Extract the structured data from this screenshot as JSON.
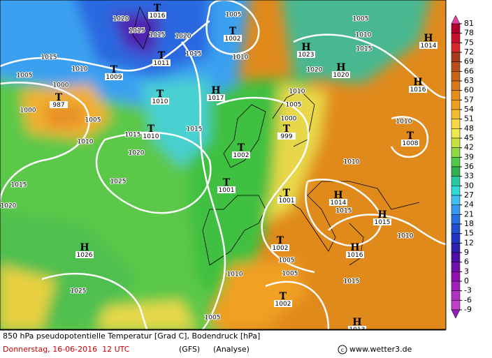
{
  "colorbar": {
    "ticks": [
      81,
      78,
      75,
      72,
      69,
      66,
      63,
      60,
      57,
      54,
      51,
      48,
      45,
      42,
      39,
      36,
      33,
      30,
      27,
      24,
      21,
      18,
      15,
      12,
      9,
      6,
      3,
      0,
      -3,
      -6,
      -9
    ],
    "colors": [
      "#b0002a",
      "#c8102e",
      "#d8282a",
      "#a83c1e",
      "#b8501c",
      "#c8641a",
      "#d87818",
      "#e88c18",
      "#f0a020",
      "#f4bc30",
      "#f8d848",
      "#f0e850",
      "#c8e040",
      "#90d840",
      "#50c848",
      "#30b050",
      "#28c8a0",
      "#30d8d8",
      "#40c0f0",
      "#3898f0",
      "#2870e0",
      "#2050d0",
      "#2038c0",
      "#3020b0",
      "#5010a8",
      "#7010a8",
      "#9010b0",
      "#a020b8",
      "#b030c0",
      "#c040c8"
    ],
    "top_color": "#e040a0",
    "bottom_color": "#9020c0"
  },
  "centers": [
    {
      "kind": "T",
      "value": "1016"
    },
    {
      "kind": "T",
      "value": "1002"
    },
    {
      "kind": "T",
      "value": "1011"
    },
    {
      "kind": "T",
      "value": "1009"
    },
    {
      "kind": "T",
      "value": "987"
    },
    {
      "kind": "T",
      "value": "1010"
    },
    {
      "kind": "H",
      "value": "1017"
    },
    {
      "kind": "H",
      "value": "1023"
    },
    {
      "kind": "H",
      "value": "1020"
    },
    {
      "kind": "H",
      "value": "1014"
    },
    {
      "kind": "H",
      "value": "1016"
    },
    {
      "kind": "T",
      "value": "1010"
    },
    {
      "kind": "T",
      "value": "999"
    },
    {
      "kind": "T",
      "value": "1002"
    },
    {
      "kind": "T",
      "value": "1008"
    },
    {
      "kind": "T",
      "value": "1001"
    },
    {
      "kind": "T",
      "value": "1001"
    },
    {
      "kind": "H",
      "value": "1014"
    },
    {
      "kind": "H",
      "value": "1015"
    },
    {
      "kind": "T",
      "value": "1002"
    },
    {
      "kind": "H",
      "value": "1016"
    },
    {
      "kind": "H",
      "value": "1026"
    },
    {
      "kind": "T",
      "value": "1002"
    },
    {
      "kind": "H",
      "value": "1013"
    }
  ],
  "isobar_labels": [
    "1020",
    "1015",
    "1015",
    "1020",
    "1005",
    "1010",
    "1015",
    "1005",
    "1010",
    "1015",
    "1020",
    "1015",
    "1010",
    "1005",
    "1000",
    "1000",
    "1005",
    "1010",
    "1015",
    "1020",
    "1025",
    "1015",
    "1020",
    "1015",
    "1010",
    "1005",
    "1000",
    "1010",
    "1015",
    "1010",
    "1010",
    "1005",
    "1005",
    "1010",
    "1015",
    "1025",
    "1005"
  ],
  "footer": {
    "line1": "850 hPa pseudopotentielle Temperatur [Grad C], Bodendruck [hPa]",
    "date": "Donnerstag, 16-06-2016  12 UTC",
    "model": "(GFS)",
    "run": "(Analyse)",
    "credit": "www.wetter3.de"
  }
}
